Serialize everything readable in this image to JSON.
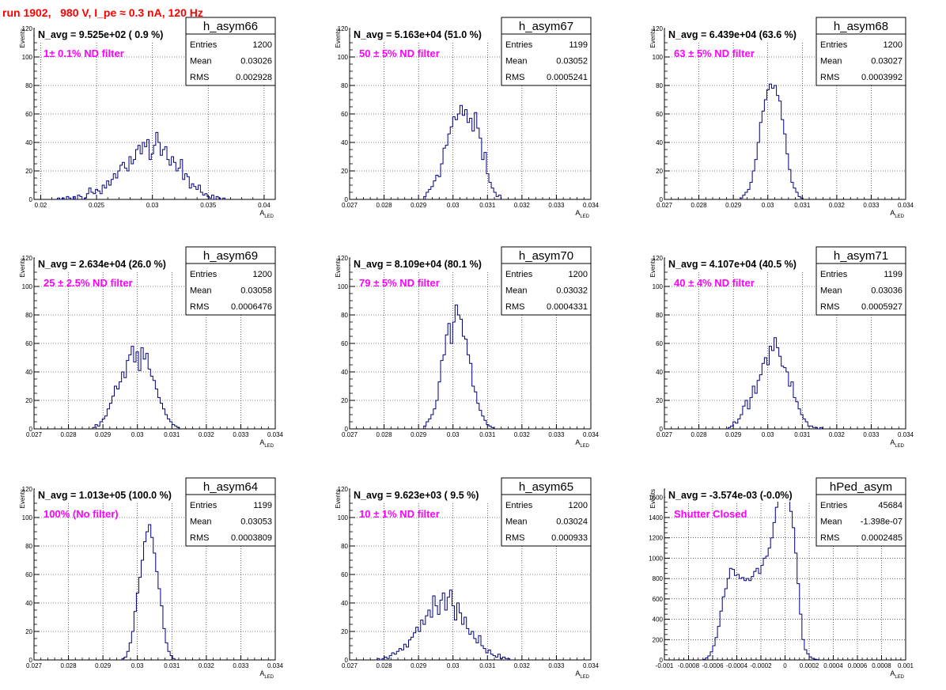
{
  "page_title": "run 1902,   980 V, I_pe ≈ 0.3 nA, 120 Hz",
  "colors": {
    "hist": "#00007f",
    "title": "#ff0000",
    "filter_label": "#ff00ff",
    "grid": "#000000"
  },
  "chart_data": [
    {
      "type": "histogram",
      "name": "h_asym66",
      "ylabel": "Events",
      "xlabel": "A_LED",
      "navg": "N_avg = 9.525e+02 ( 0.9 %)",
      "filter": "1± 0.1% ND filter",
      "stats": {
        "Entries": "1200",
        "Mean": "0.03026",
        "RMS": "0.002928"
      },
      "xlim": [
        0.0194,
        0.041
      ],
      "ylim": [
        0,
        120
      ],
      "xticks": [
        0.02,
        0.025,
        0.03,
        0.035,
        0.04
      ],
      "xticklabels": [
        "0.02",
        "0.025",
        "0.03",
        "0.035",
        "0.04"
      ],
      "yticks": [
        0,
        20,
        40,
        60,
        80,
        100,
        120
      ],
      "bins": {
        "start": 0.0215,
        "width": 0.0002,
        "values": [
          1,
          0,
          1,
          0,
          2,
          1,
          0,
          2,
          0,
          3,
          2,
          0,
          1,
          4,
          8,
          5,
          4,
          7,
          6,
          4,
          10,
          8,
          13,
          10,
          14,
          18,
          15,
          20,
          24,
          26,
          22,
          20,
          30,
          25,
          28,
          35,
          38,
          32,
          40,
          37,
          42,
          28,
          32,
          38,
          47,
          40,
          31,
          35,
          37,
          28,
          24,
          30,
          26,
          20,
          22,
          28,
          14,
          18,
          16,
          8,
          11,
          9,
          7,
          10,
          5,
          3,
          4,
          2,
          1,
          3,
          0,
          2,
          1,
          0,
          1
        ]
      }
    },
    {
      "type": "histogram",
      "name": "h_asym67",
      "ylabel": "Events",
      "xlabel": "A_LED",
      "navg": "N_avg = 5.163e+04 (51.0 %)",
      "filter": "50 ± 5% ND filter",
      "stats": {
        "Entries": "1199",
        "Mean": "0.03052",
        "RMS": "0.0005241"
      },
      "xlim": [
        0.027,
        0.034
      ],
      "ylim": [
        0,
        120
      ],
      "xticks": [
        0.027,
        0.028,
        0.029,
        0.03,
        0.031,
        0.032,
        0.033,
        0.034
      ],
      "xticklabels": [
        "0.027",
        "0.028",
        "0.029",
        "0.03",
        "0.031",
        "0.032",
        "0.033",
        "0.034"
      ],
      "yticks": [
        0,
        20,
        40,
        60,
        80,
        100,
        120
      ],
      "bins": {
        "start": 0.02915,
        "width": 7e-05,
        "values": [
          2,
          5,
          7,
          9,
          13,
          17,
          16,
          25,
          36,
          38,
          46,
          51,
          58,
          56,
          60,
          66,
          59,
          63,
          54,
          57,
          48,
          61,
          50,
          43,
          28,
          33,
          18,
          12,
          8,
          5,
          2,
          3
        ]
      }
    },
    {
      "type": "histogram",
      "name": "h_asym68",
      "ylabel": "Events",
      "xlabel": "A_LED",
      "navg": "N_avg = 6.439e+04 (63.6 %)",
      "filter": "63 ± 5% ND filter",
      "stats": {
        "Entries": "1200",
        "Mean": "0.03027",
        "RMS": "0.0003992"
      },
      "xlim": [
        0.027,
        0.034
      ],
      "ylim": [
        0,
        120
      ],
      "xticks": [
        0.027,
        0.028,
        0.029,
        0.03,
        0.031,
        0.032,
        0.033,
        0.034
      ],
      "xticklabels": [
        "0.027",
        "0.028",
        "0.029",
        "0.03",
        "0.031",
        "0.032",
        "0.033",
        "0.034"
      ],
      "yticks": [
        0,
        20,
        40,
        60,
        80,
        100,
        120
      ],
      "bins": {
        "start": 0.0292,
        "width": 7e-05,
        "values": [
          1,
          3,
          5,
          7,
          12,
          20,
          28,
          40,
          54,
          62,
          70,
          77,
          81,
          78,
          80,
          73,
          69,
          56,
          46,
          32,
          21,
          12,
          8,
          5,
          2,
          1
        ]
      }
    },
    {
      "type": "histogram",
      "name": "h_asym69",
      "ylabel": "Events",
      "xlabel": "A_LED",
      "navg": "N_avg = 2.634e+04 (26.0 %)",
      "filter": "25 ± 2.5% ND filter",
      "stats": {
        "Entries": "1200",
        "Mean": "0.03058",
        "RMS": "0.0006476"
      },
      "xlim": [
        0.027,
        0.034
      ],
      "ylim": [
        0,
        120
      ],
      "xticks": [
        0.027,
        0.028,
        0.029,
        0.03,
        0.031,
        0.032,
        0.033,
        0.034
      ],
      "xticklabels": [
        "0.027",
        "0.028",
        "0.029",
        "0.03",
        "0.031",
        "0.032",
        "0.033",
        "0.034"
      ],
      "yticks": [
        0,
        20,
        40,
        60,
        80,
        100,
        120
      ],
      "bins": {
        "start": 0.0287,
        "width": 7e-05,
        "values": [
          1,
          3,
          2,
          5,
          7,
          9,
          14,
          18,
          23,
          30,
          28,
          33,
          40,
          36,
          48,
          52,
          58,
          47,
          54,
          41,
          57,
          49,
          53,
          42,
          37,
          34,
          28,
          22,
          18,
          14,
          10,
          7,
          5,
          3,
          2,
          1
        ]
      }
    },
    {
      "type": "histogram",
      "name": "h_asym70",
      "ylabel": "Events",
      "xlabel": "A_LED",
      "navg": "N_avg = 8.109e+04 (80.1 %)",
      "filter": "79 ± 5% ND filter",
      "stats": {
        "Entries": "1200",
        "Mean": "0.03032",
        "RMS": "0.0004331"
      },
      "xlim": [
        0.027,
        0.034
      ],
      "ylim": [
        0,
        120
      ],
      "xticks": [
        0.027,
        0.028,
        0.029,
        0.03,
        0.031,
        0.032,
        0.033,
        0.034
      ],
      "xticklabels": [
        "0.027",
        "0.028",
        "0.029",
        "0.03",
        "0.031",
        "0.032",
        "0.033",
        "0.034"
      ],
      "yticks": [
        0,
        20,
        40,
        60,
        80,
        100,
        120
      ],
      "bins": {
        "start": 0.02915,
        "width": 7e-05,
        "values": [
          2,
          5,
          7,
          10,
          14,
          20,
          33,
          48,
          52,
          66,
          74,
          60,
          75,
          87,
          80,
          77,
          65,
          63,
          52,
          46,
          30,
          26,
          18,
          13,
          9,
          6,
          3,
          2,
          1
        ]
      }
    },
    {
      "type": "histogram",
      "name": "h_asym71",
      "ylabel": "Events",
      "xlabel": "A_LED",
      "navg": "N_avg = 4.107e+04 (40.5 %)",
      "filter": "40 ± 4% ND filter",
      "stats": {
        "Entries": "1199",
        "Mean": "0.03036",
        "RMS": "0.0005927"
      },
      "xlim": [
        0.027,
        0.034
      ],
      "ylim": [
        0,
        120
      ],
      "xticks": [
        0.027,
        0.028,
        0.029,
        0.03,
        0.031,
        0.032,
        0.033,
        0.034
      ],
      "xticklabels": [
        "0.027",
        "0.028",
        "0.029",
        "0.03",
        "0.031",
        "0.032",
        "0.033",
        "0.034"
      ],
      "yticks": [
        0,
        20,
        40,
        60,
        80,
        100,
        120
      ],
      "bins": {
        "start": 0.02885,
        "width": 7e-05,
        "values": [
          1,
          2,
          5,
          4,
          7,
          10,
          16,
          20,
          14,
          22,
          30,
          25,
          34,
          38,
          46,
          50,
          45,
          58,
          55,
          64,
          57,
          51,
          44,
          43,
          40,
          30,
          33,
          22,
          19,
          14,
          10,
          7,
          5,
          2,
          2,
          1,
          1,
          0,
          1
        ]
      }
    },
    {
      "type": "histogram",
      "name": "h_asym64",
      "ylabel": "Events",
      "xlabel": "A_LED",
      "navg": "N_avg = 1.013e+05 (100.0 %)",
      "filter": "100% (No filter)",
      "stats": {
        "Entries": "1199",
        "Mean": "0.03053",
        "RMS": "0.0003809"
      },
      "xlim": [
        0.027,
        0.034
      ],
      "ylim": [
        0,
        120
      ],
      "xticks": [
        0.027,
        0.028,
        0.029,
        0.03,
        0.031,
        0.032,
        0.033,
        0.034
      ],
      "xticklabels": [
        "0.027",
        "0.028",
        "0.029",
        "0.03",
        "0.031",
        "0.032",
        "0.033",
        "0.034"
      ],
      "yticks": [
        0,
        20,
        40,
        60,
        80,
        100,
        120
      ],
      "bins": {
        "start": 0.02955,
        "width": 7e-05,
        "values": [
          1,
          2,
          6,
          12,
          20,
          34,
          47,
          58,
          70,
          83,
          90,
          95,
          86,
          75,
          62,
          50,
          38,
          22,
          12,
          6,
          3,
          1
        ]
      }
    },
    {
      "type": "histogram",
      "name": "h_asym65",
      "ylabel": "Events",
      "xlabel": "A_LED",
      "navg": "N_avg = 9.623e+03 ( 9.5 %)",
      "filter": "10 ± 1% ND filter",
      "stats": {
        "Entries": "1200",
        "Mean": "0.03024",
        "RMS": "0.000933"
      },
      "xlim": [
        0.027,
        0.034
      ],
      "ylim": [
        0,
        120
      ],
      "xticks": [
        0.027,
        0.028,
        0.029,
        0.03,
        0.031,
        0.032,
        0.033,
        0.034
      ],
      "xticklabels": [
        "0.027",
        "0.028",
        "0.029",
        "0.03",
        "0.031",
        "0.032",
        "0.033",
        "0.034"
      ],
      "yticks": [
        0,
        20,
        40,
        60,
        80,
        100,
        120
      ],
      "bins": {
        "start": 0.0278,
        "width": 7e-05,
        "values": [
          1,
          0,
          1,
          2,
          1,
          3,
          5,
          4,
          6,
          8,
          7,
          11,
          9,
          14,
          16,
          19,
          23,
          20,
          28,
          25,
          31,
          35,
          30,
          45,
          38,
          32,
          42,
          47,
          35,
          44,
          49,
          38,
          28,
          40,
          33,
          25,
          30,
          22,
          18,
          20,
          15,
          12,
          17,
          10,
          8,
          5,
          7,
          4,
          3,
          2,
          4,
          1,
          2,
          1,
          1
        ]
      }
    },
    {
      "type": "histogram",
      "name": "hPed_asym",
      "ylabel": "Events",
      "xlabel": "A_LED",
      "navg": "N_avg = -3.574e-03 (-0.0%)",
      "filter": "Shutter Closed",
      "stats": {
        "Entries": "45684",
        "Mean": "-1.398e-07",
        "RMS": "0.0002485"
      },
      "xlim": [
        -0.001,
        0.001
      ],
      "ylim": [
        0,
        1680
      ],
      "xticks": [
        -0.001,
        -0.0008,
        -0.0006,
        -0.0004,
        -0.0002,
        0,
        0.0002,
        0.0004,
        0.0006,
        0.0008,
        0.001
      ],
      "xticklabels": [
        "-0.001",
        "-0.0008",
        "-0.0006",
        "-0.0004",
        "-0.0002",
        "0",
        "0.0002",
        "0.0004",
        "0.0006",
        "0.0008",
        "0.001"
      ],
      "yticks": [
        0,
        200,
        400,
        600,
        800,
        1000,
        1200,
        1400,
        1600
      ],
      "bins": {
        "start": -0.00068,
        "width": 2e-05,
        "values": [
          5,
          20,
          40,
          80,
          140,
          220,
          330,
          480,
          620,
          700,
          800,
          900,
          890,
          830,
          840,
          800,
          810,
          780,
          800,
          780,
          820,
          870,
          900,
          850,
          930,
          1000,
          1020,
          1100,
          1200,
          1350,
          1500,
          1600,
          1560,
          1620,
          1650,
          1560,
          1460,
          1300,
          1050,
          750,
          450,
          200,
          100,
          60,
          30,
          15,
          8,
          3
        ]
      }
    }
  ]
}
